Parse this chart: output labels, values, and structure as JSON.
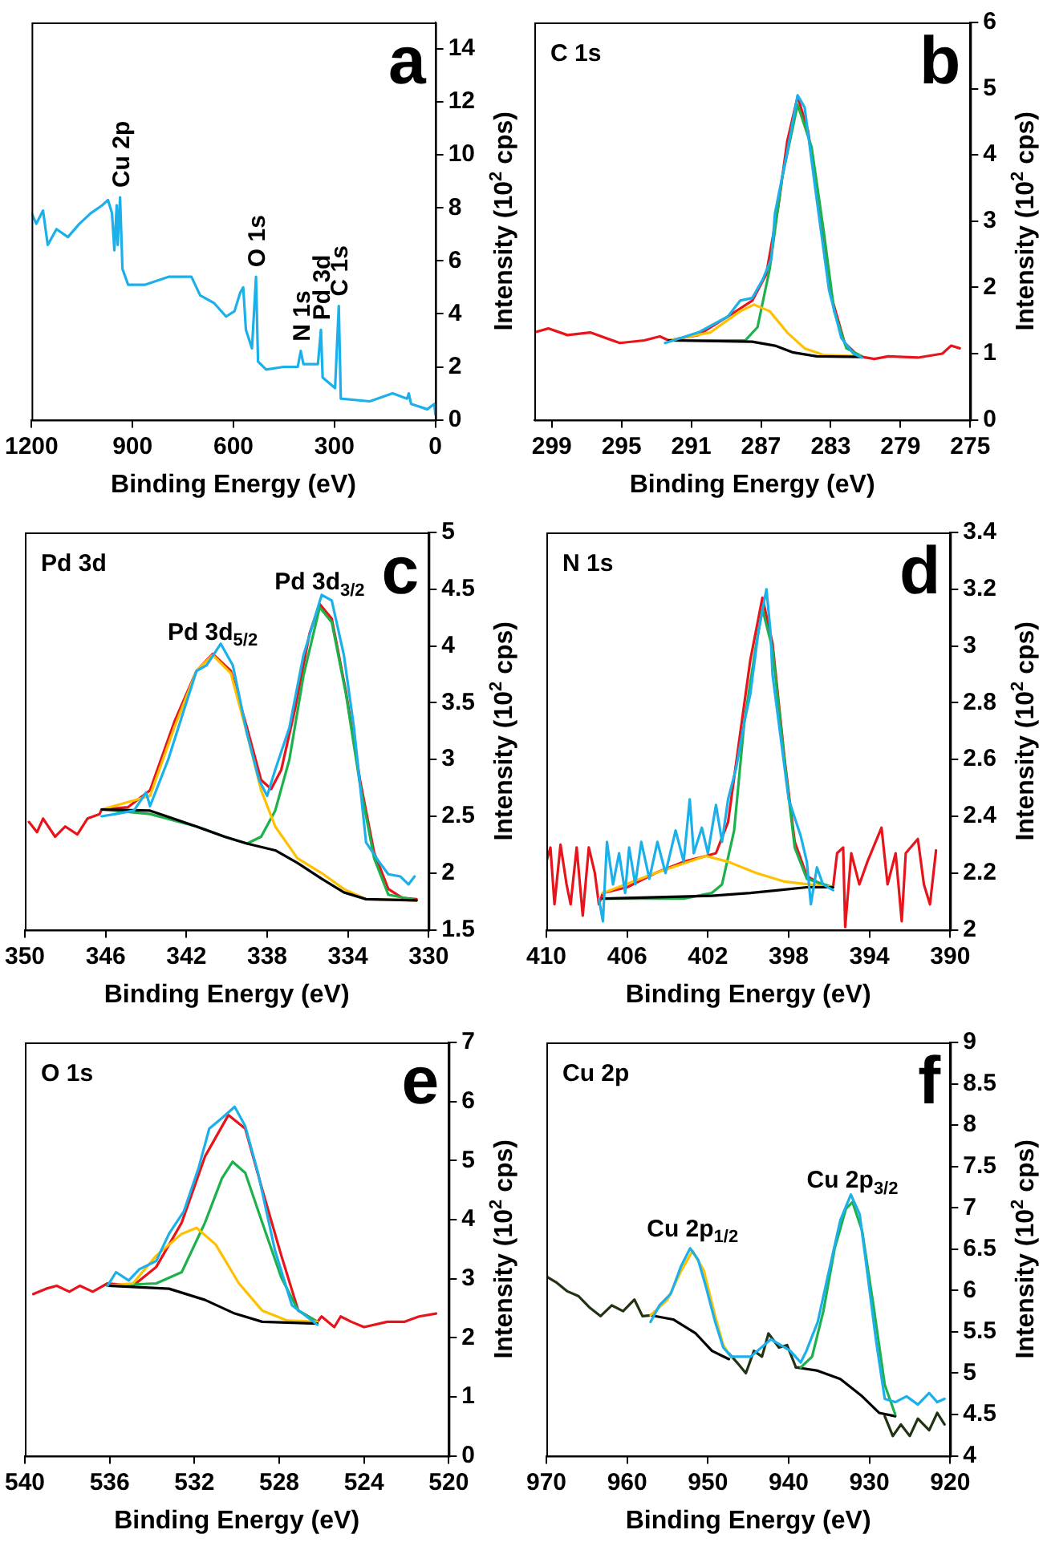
{
  "chart_data": [
    {
      "type": "line",
      "title": "a",
      "xlabel": "Binding Energy (eV)",
      "ylabel": "Intensity (10$^{2}$ cps)",
      "xlim": [
        1200,
        0
      ],
      "xticks": [
        1200,
        900,
        600,
        300,
        0
      ],
      "ylim": [
        0,
        15
      ],
      "yticks": [
        0,
        2,
        4,
        6,
        8,
        10,
        12,
        14
      ],
      "annotations": [
        {
          "text": "Cu 2p",
          "x": 937,
          "y": 8.4
        },
        {
          "text": "O 1s",
          "x": 533,
          "y": 5.4
        },
        {
          "text": "N 1s",
          "x": 400,
          "y": 2.6
        },
        {
          "text": "Pd 3d",
          "x": 340,
          "y": 3.4
        },
        {
          "text": "C 1s",
          "x": 287,
          "y": 4.3
        }
      ],
      "series": [
        {
          "color": "#1cb0ea",
          "x": [
            1200,
            1186,
            1166,
            1152,
            1126,
            1092,
            1058,
            1024,
            990,
            973,
            961,
            954,
            947,
            944,
            937,
            930,
            913,
            862,
            793,
            725,
            699,
            657,
            622,
            597,
            580,
            571,
            563,
            545,
            533,
            527,
            503,
            451,
            409,
            400,
            392,
            349,
            340,
            335,
            298,
            287,
            281,
            195,
            127,
            84,
            79,
            72,
            24,
            3,
            0
          ],
          "values": [
            7.8,
            7.4,
            7.9,
            6.6,
            7.2,
            6.9,
            7.4,
            7.8,
            8.1,
            8.3,
            7.8,
            6.4,
            8.1,
            6.6,
            8.4,
            5.7,
            5.1,
            5.1,
            5.4,
            5.4,
            4.7,
            4.4,
            3.9,
            4.1,
            4.8,
            5.0,
            3.4,
            2.7,
            5.4,
            2.2,
            1.9,
            2.0,
            2.0,
            2.6,
            2.1,
            2.1,
            3.4,
            1.6,
            1.2,
            4.3,
            0.8,
            0.7,
            1.0,
            0.8,
            1.0,
            0.6,
            0.4,
            0.6,
            0.2
          ]
        }
      ]
    },
    {
      "type": "line",
      "title": "b",
      "xlabel": "Binding Energy (eV)",
      "ylabel": "Intensity (10$^{2}$ cps)",
      "xlim": [
        300,
        275
      ],
      "xticks": [
        299,
        295,
        291,
        287,
        283,
        279,
        275
      ],
      "ylim": [
        0,
        6
      ],
      "yticks": [
        0,
        1,
        2,
        3,
        4,
        5,
        6
      ],
      "annotations": [
        "C 1s"
      ],
      "series": [
        {
          "color": "#1cb0ea",
          "x": [
            292.5,
            290.6,
            288.9,
            288.2,
            287.5,
            286.9,
            286.4,
            286.2,
            285.5,
            284.9,
            284.5,
            283.8,
            283.1,
            282.4,
            281.7,
            281.2
          ],
          "values": [
            1.16,
            1.32,
            1.56,
            1.8,
            1.84,
            2.12,
            2.44,
            3.12,
            4.04,
            4.9,
            4.72,
            3.32,
            1.96,
            1.24,
            1.0,
            0.94
          ]
        },
        {
          "color": "#000000",
          "x": [
            292.3,
            287.5,
            286.2,
            285.2,
            283.8,
            281.2
          ],
          "values": [
            1.2,
            1.18,
            1.12,
            1.02,
            0.96,
            0.95
          ]
        },
        {
          "color": "#ffc000",
          "x": [
            292.3,
            289.9,
            288.2,
            287.4,
            286.5,
            285.5,
            284.5,
            283.4,
            281.2
          ],
          "values": [
            1.2,
            1.32,
            1.64,
            1.74,
            1.64,
            1.32,
            1.08,
            0.98,
            0.96
          ]
        },
        {
          "color": "#1db14b",
          "x": [
            292.3,
            287.9,
            287.2,
            286.5,
            285.8,
            284.9,
            284.1,
            283.4,
            282.8,
            282.1,
            281.2
          ],
          "values": [
            1.2,
            1.2,
            1.4,
            2.28,
            3.64,
            4.76,
            4.12,
            2.84,
            1.64,
            1.08,
            0.96
          ]
        },
        {
          "color": "#e8141c",
          "x": [
            300,
            299.2,
            298.1,
            296.8,
            295.1,
            293.7,
            292.8,
            292.3,
            290.6,
            288.9,
            287.5,
            286.7,
            286.0,
            285.5,
            284.9,
            284.3,
            283.6,
            282.9,
            282.2,
            281.4,
            280.5,
            279.7,
            278.0,
            276.6,
            276.1,
            275.6
          ],
          "values": [
            1.32,
            1.38,
            1.28,
            1.32,
            1.16,
            1.2,
            1.26,
            1.2,
            1.28,
            1.56,
            1.8,
            2.2,
            3.24,
            4.2,
            4.88,
            4.36,
            3.0,
            1.8,
            1.16,
            0.96,
            0.92,
            0.96,
            0.94,
            1.0,
            1.12,
            1.08
          ]
        }
      ]
    },
    {
      "type": "line",
      "title": "c",
      "xlabel": "Binding Energy (eV)",
      "ylabel": "Intensity (10$^{2}$ cps)",
      "xlim": [
        350,
        330
      ],
      "xticks": [
        350,
        346,
        342,
        338,
        334,
        330
      ],
      "ylim": [
        1.5,
        5
      ],
      "yticks": [
        1.5,
        2,
        2.5,
        3,
        3.5,
        4,
        4.5,
        5
      ],
      "annotations": [
        "Pd 3d",
        {
          "text": "Pd 3d$_{5/2}$",
          "x": 340.7,
          "y": 3.93
        },
        {
          "text": "Pd 3d$_{3/2}$",
          "x": 335.4,
          "y": 4.37
        }
      ],
      "series": [
        {
          "color": "#1cb0ea",
          "x": [
            346.2,
            345.5,
            344.6,
            344.0,
            343.8,
            342.9,
            342.4,
            341.5,
            341.0,
            340.3,
            339.7,
            339.0,
            338.4,
            338.0,
            337.6,
            336.9,
            336.2,
            335.3,
            334.8,
            334.2,
            333.7,
            333.1,
            332.5,
            332.0,
            331.4,
            331.0,
            330.7
          ],
          "values": [
            2.5,
            2.52,
            2.55,
            2.71,
            2.59,
            3.0,
            3.28,
            3.78,
            3.83,
            4.02,
            3.83,
            3.23,
            2.82,
            2.68,
            2.91,
            3.28,
            3.92,
            4.45,
            4.4,
            3.92,
            3.28,
            2.27,
            2.11,
            1.99,
            1.97,
            1.9,
            1.97
          ]
        },
        {
          "color": "#000000",
          "x": [
            346.2,
            343.8,
            341.5,
            340.1,
            339.0,
            337.6,
            336.5,
            335.3,
            334.2,
            333.1,
            330.6
          ],
          "values": [
            2.56,
            2.55,
            2.41,
            2.32,
            2.26,
            2.2,
            2.09,
            1.95,
            1.83,
            1.77,
            1.76
          ]
        },
        {
          "color": "#ffc000",
          "x": [
            346.2,
            343.8,
            342.6,
            341.5,
            340.7,
            339.8,
            339.0,
            338.3,
            337.6,
            336.5,
            335.3,
            334.2,
            333.1,
            330.6
          ],
          "values": [
            2.56,
            2.68,
            3.28,
            3.78,
            3.92,
            3.76,
            3.23,
            2.73,
            2.41,
            2.13,
            2.0,
            1.86,
            1.77,
            1.76
          ]
        },
        {
          "color": "#1db14b",
          "x": [
            346.2,
            343.8,
            341.5,
            340.1,
            339.0,
            338.3,
            337.6,
            336.9,
            336.2,
            335.4,
            334.8,
            334.1,
            333.4,
            332.7,
            332.0,
            330.6
          ],
          "values": [
            2.56,
            2.52,
            2.41,
            2.32,
            2.26,
            2.32,
            2.55,
            3.0,
            3.74,
            4.34,
            4.21,
            3.58,
            2.78,
            2.13,
            1.81,
            1.76
          ]
        },
        {
          "color": "#e8141c",
          "x": [
            349.8,
            349.4,
            349.1,
            348.5,
            348.0,
            347.4,
            346.9,
            346.3,
            346.2,
            344.9,
            343.8,
            342.6,
            341.5,
            340.7,
            339.8,
            339.0,
            338.3,
            337.8,
            337.3,
            336.6,
            335.9,
            335.4,
            334.8,
            334.1,
            333.4,
            332.7,
            332.0,
            331.3,
            330.6
          ],
          "values": [
            2.45,
            2.36,
            2.48,
            2.32,
            2.41,
            2.34,
            2.48,
            2.52,
            2.56,
            2.58,
            2.73,
            3.33,
            3.78,
            3.93,
            3.78,
            3.28,
            2.82,
            2.74,
            2.91,
            3.46,
            4.11,
            4.37,
            4.24,
            3.6,
            2.82,
            2.18,
            1.86,
            1.78,
            1.77
          ]
        }
      ]
    },
    {
      "type": "line",
      "title": "d",
      "xlabel": "Binding Energy (eV)",
      "ylabel": "Intensity (10$^{2}$ cps)",
      "xlim": [
        410,
        390
      ],
      "xticks": [
        410,
        406,
        402,
        398,
        394,
        390
      ],
      "ylim": [
        2,
        3.4
      ],
      "yticks": [
        2,
        2.2,
        2.4,
        2.6,
        2.8,
        3,
        3.2,
        3.4
      ],
      "annotations": [
        "N 1s"
      ],
      "series": [
        {
          "color": "#1cb0ea",
          "x": [
            407.4,
            407.2,
            407.0,
            406.7,
            406.4,
            406.1,
            405.9,
            405.6,
            405.3,
            404.9,
            404.5,
            404.1,
            403.6,
            403.2,
            402.9,
            402.7,
            402.3,
            402.0,
            401.6,
            401.3,
            401.0,
            400.6,
            400.2,
            399.9,
            399.5,
            399.1,
            398.9,
            398.8,
            398.4,
            398.0,
            397.4,
            397.1,
            396.9,
            396.6,
            396.3,
            395.8
          ],
          "values": [
            2.11,
            2.03,
            2.31,
            2.16,
            2.27,
            2.13,
            2.29,
            2.16,
            2.31,
            2.18,
            2.31,
            2.2,
            2.35,
            2.24,
            2.46,
            2.27,
            2.36,
            2.27,
            2.44,
            2.31,
            2.46,
            2.57,
            2.73,
            2.83,
            3.05,
            3.2,
            3.05,
            2.9,
            2.68,
            2.46,
            2.33,
            2.24,
            2.09,
            2.22,
            2.16,
            2.14
          ]
        },
        {
          "color": "#000000",
          "x": [
            407.2,
            401.8,
            399.9,
            398.5,
            397.1,
            395.8
          ],
          "values": [
            2.11,
            2.12,
            2.13,
            2.14,
            2.15,
            2.15
          ]
        },
        {
          "color": "#ffc000",
          "x": [
            407.2,
            404.6,
            402.1,
            401.0,
            399.6,
            398.2,
            395.8
          ],
          "values": [
            2.13,
            2.2,
            2.26,
            2.24,
            2.2,
            2.17,
            2.15
          ]
        },
        {
          "color": "#1db14b",
          "x": [
            407.2,
            403.2,
            401.8,
            401.3,
            400.7,
            400.2,
            399.6,
            399.3,
            398.8,
            398.2,
            397.7,
            397.1,
            395.8
          ],
          "values": [
            2.11,
            2.11,
            2.13,
            2.16,
            2.35,
            2.73,
            3.01,
            3.13,
            2.99,
            2.59,
            2.29,
            2.18,
            2.15
          ]
        },
        {
          "color": "#e8141c",
          "x": [
            410,
            409.8,
            409.6,
            409.3,
            409.0,
            408.8,
            408.5,
            408.2,
            407.9,
            407.6,
            407.4,
            407.2,
            406.0,
            404.6,
            403.2,
            402.1,
            401.6,
            401.0,
            400.5,
            399.9,
            399.3,
            398.8,
            398.2,
            397.7,
            397.1,
            396.4,
            395.8,
            395.6,
            395.3,
            395.2,
            394.9,
            394.5,
            394.1,
            393.4,
            393.1,
            392.7,
            392.4,
            392.2,
            391.6,
            391.3,
            391.0,
            390.7
          ],
          "values": [
            2.24,
            2.29,
            2.09,
            2.3,
            2.16,
            2.09,
            2.29,
            2.05,
            2.29,
            2.2,
            2.09,
            2.13,
            2.15,
            2.2,
            2.24,
            2.26,
            2.27,
            2.38,
            2.64,
            2.95,
            3.17,
            3.01,
            2.6,
            2.31,
            2.19,
            2.16,
            2.15,
            2.27,
            2.29,
            2.01,
            2.27,
            2.16,
            2.24,
            2.36,
            2.16,
            2.27,
            2.03,
            2.27,
            2.32,
            2.16,
            2.09,
            2.28
          ]
        }
      ]
    },
    {
      "type": "line",
      "title": "e",
      "xlabel": "Binding Energy (eV)",
      "ylabel": "Intensity (10$^{2}$ cps)",
      "xlim": [
        540,
        520
      ],
      "xticks": [
        540,
        536,
        532,
        528,
        524,
        520
      ],
      "ylim": [
        0,
        7
      ],
      "yticks": [
        0,
        1,
        2,
        3,
        4,
        5,
        6,
        7
      ],
      "annotations": [
        "O 1s"
      ],
      "series": [
        {
          "color": "#1cb0ea",
          "x": [
            536.1,
            535.7,
            535.1,
            534.6,
            533.8,
            533.2,
            532.5,
            531.8,
            531.3,
            530.7,
            530.1,
            529.6,
            529.0,
            528.2,
            527.4,
            526.2
          ],
          "values": [
            2.88,
            3.11,
            2.97,
            3.16,
            3.3,
            3.76,
            4.14,
            4.88,
            5.54,
            5.72,
            5.91,
            5.58,
            4.79,
            3.48,
            2.55,
            2.22
          ]
        },
        {
          "color": "#000000",
          "x": [
            536.1,
            533.2,
            531.5,
            530.1,
            528.8,
            526.2
          ],
          "values": [
            2.88,
            2.83,
            2.64,
            2.41,
            2.27,
            2.24
          ]
        },
        {
          "color": "#ffc000",
          "x": [
            536.1,
            534.9,
            533.8,
            532.6,
            531.9,
            531.0,
            529.9,
            528.8,
            527.6,
            526.2
          ],
          "values": [
            2.88,
            2.92,
            3.39,
            3.76,
            3.86,
            3.58,
            2.92,
            2.46,
            2.29,
            2.27
          ]
        },
        {
          "color": "#1db14b",
          "x": [
            536.1,
            533.8,
            532.6,
            531.5,
            530.7,
            530.2,
            529.6,
            528.8,
            527.9,
            527.1,
            526.2
          ],
          "values": [
            2.88,
            2.92,
            3.11,
            3.95,
            4.7,
            4.98,
            4.79,
            3.95,
            3.02,
            2.46,
            2.27
          ]
        },
        {
          "color": "#e8141c",
          "x": [
            539.6,
            539.0,
            538.5,
            537.9,
            537.4,
            536.8,
            536.1,
            534.9,
            533.8,
            532.6,
            531.5,
            530.4,
            529.6,
            528.8,
            527.9,
            527.1,
            526.2,
            526.0,
            525.4,
            525.1,
            524.6,
            524.0,
            522.9,
            522.1,
            521.4,
            520.6
          ],
          "values": [
            2.74,
            2.83,
            2.88,
            2.78,
            2.88,
            2.78,
            2.92,
            2.88,
            3.2,
            3.95,
            5.07,
            5.77,
            5.54,
            4.51,
            3.39,
            2.46,
            2.27,
            2.36,
            2.18,
            2.36,
            2.27,
            2.18,
            2.27,
            2.27,
            2.36,
            2.41
          ]
        }
      ]
    },
    {
      "type": "line",
      "title": "f",
      "xlabel": "Binding Energy (eV)",
      "ylabel": "Intensity (10$^{2}$ cps)",
      "xlim": [
        970,
        920
      ],
      "xticks": [
        970,
        960,
        950,
        940,
        930,
        920
      ],
      "ylim": [
        4,
        9
      ],
      "yticks": [
        4,
        4.5,
        5,
        5.5,
        6,
        6.5,
        7,
        7.5,
        8,
        8.5,
        9
      ],
      "annotations": [
        "Cu 2p",
        {
          "text": "Cu 2p$_{1/2}$",
          "x": 951.9,
          "y": 6.48
        },
        {
          "text": "Cu 2p$_{3/2}$",
          "x": 932.1,
          "y": 7.07
        }
      ],
      "series": [
        {
          "color": "#1cb0ea",
          "x": [
            957.1,
            956.0,
            954.6,
            953.3,
            952.2,
            951.2,
            950.2,
            949.1,
            948.1,
            947.1,
            944.7,
            942.2,
            939.8,
            938.5,
            937.8,
            936.4,
            935.0,
            933.6,
            932.3,
            931.2,
            930.2,
            929.2,
            928.1,
            926.8,
            925.4,
            924.0,
            922.6,
            921.6,
            920.7
          ],
          "values": [
            5.62,
            5.82,
            5.96,
            6.3,
            6.51,
            6.37,
            6.03,
            5.62,
            5.31,
            5.2,
            5.2,
            5.41,
            5.27,
            5.13,
            5.27,
            5.62,
            6.24,
            6.85,
            7.16,
            6.92,
            6.17,
            5.41,
            4.69,
            4.65,
            4.72,
            4.62,
            4.76,
            4.65,
            4.69
          ]
        },
        {
          "color": "#ffc000",
          "x": [
            957.1,
            955.0,
            953.3,
            951.9,
            950.5,
            949.1,
            948.1,
            947.1
          ],
          "values": [
            5.7,
            5.89,
            6.24,
            6.48,
            6.24,
            5.69,
            5.34,
            5.19
          ]
        },
        {
          "color": "#1db14b",
          "x": [
            938.5,
            937.1,
            935.7,
            934.3,
            932.9,
            932.1,
            930.9,
            929.5,
            928.1,
            926.8
          ],
          "values": [
            5.07,
            5.2,
            5.75,
            6.51,
            6.99,
            7.07,
            6.72,
            5.82,
            4.86,
            4.5
          ]
        },
        {
          "color": "#223314",
          "x": [
            970,
            968.8,
            967.4,
            966.0,
            964.6,
            963.3,
            961.9,
            960.5,
            959.1,
            958.1,
            957.1,
            952,
            947.4,
            946.4,
            945.3,
            944.3,
            943.3,
            942.5,
            941.2,
            940.2,
            939.1,
            938.5,
            933,
            928.1,
            927.1,
            926.1,
            925.0,
            924.0,
            922.6,
            921.6,
            920.7
          ],
          "values": [
            6.17,
            6.1,
            5.99,
            5.93,
            5.79,
            5.69,
            5.82,
            5.75,
            5.89,
            5.69,
            5.7,
            null,
            5.24,
            5.13,
            5.0,
            5.27,
            5.2,
            5.48,
            5.31,
            5.34,
            5.07,
            5.07,
            null,
            4.48,
            4.24,
            4.38,
            4.24,
            4.45,
            4.31,
            4.52,
            4.38
          ]
        },
        {
          "color": "#000000",
          "x": [
            957.1,
            954.3,
            951.5,
            949.5,
            947.4,
            943,
            939.1,
            936.4,
            933.6,
            930.9,
            928.8,
            926.8
          ],
          "values": [
            5.7,
            5.65,
            5.48,
            5.27,
            5.17,
            null,
            5.07,
            5.03,
            4.93,
            4.72,
            4.52,
            4.48
          ]
        }
      ]
    }
  ]
}
